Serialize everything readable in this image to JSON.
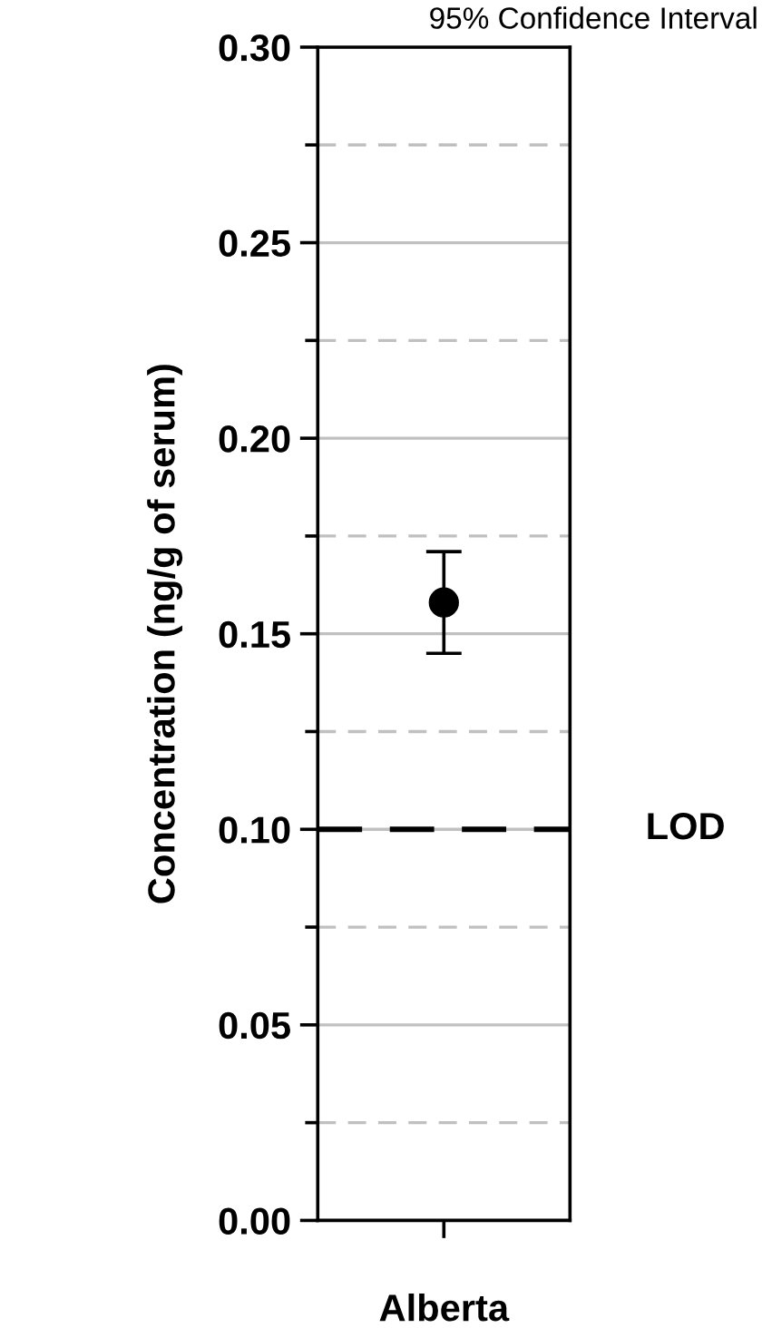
{
  "chart_data": {
    "type": "scatter",
    "ylabel": "Concentration (ng/g of serum)",
    "annotations": [
      "95% Confidence Interval"
    ],
    "categories": [
      "Alberta"
    ],
    "values": [
      0.158
    ],
    "errors": [
      [
        0.145,
        0.171
      ]
    ],
    "color": "#000000",
    "marker": "circle",
    "ylim": [
      0,
      0.3
    ],
    "yticks": [
      {
        "value": 0,
        "label": "0.00"
      },
      {
        "value": 0.025,
        "label": null
      },
      {
        "value": 0.05,
        "label": "0.05"
      },
      {
        "value": 0.075,
        "label": null
      },
      {
        "value": 0.1,
        "label": "0.10"
      },
      {
        "value": 0.125,
        "label": null
      },
      {
        "value": 0.15,
        "label": "0.15"
      },
      {
        "value": 0.175,
        "label": null
      },
      {
        "value": 0.2,
        "label": "0.20"
      },
      {
        "value": 0.225,
        "label": null
      },
      {
        "value": 0.25,
        "label": "0.25"
      },
      {
        "value": 0.275,
        "label": null
      },
      {
        "value": 0.3,
        "label": "0.30"
      }
    ],
    "grid": true,
    "ref_lines": [
      {
        "axis": "y",
        "value": 0.1,
        "label": "LOD",
        "color": "#000000",
        "line_style": "dashed"
      }
    ]
  }
}
